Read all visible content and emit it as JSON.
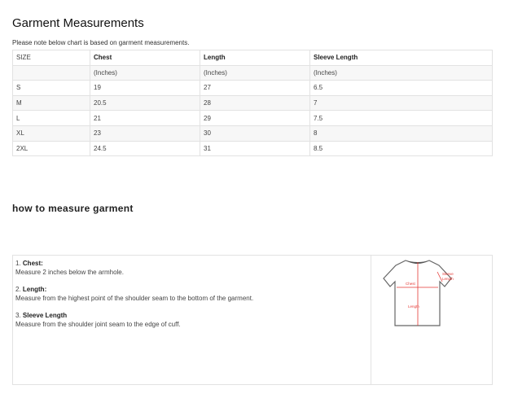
{
  "title": "Garment Measurements",
  "note": "Please note below chart is based on garment measurements.",
  "table": {
    "headers": [
      "SIZE",
      "Chest",
      "Length",
      "Sleeve Length"
    ],
    "units": [
      "",
      "(Inches)",
      "(Inches)",
      "(Inches)"
    ],
    "rows": [
      [
        "S",
        "19",
        "27",
        "6.5"
      ],
      [
        "M",
        "20.5",
        "28",
        "7"
      ],
      [
        "L",
        "21",
        "29",
        "7.5"
      ],
      [
        "XL",
        "23",
        "30",
        "8"
      ],
      [
        "2XL",
        "24.5",
        "31",
        "8.5"
      ]
    ]
  },
  "howto": {
    "title": "how to measure garment",
    "items": [
      {
        "num": "1.",
        "label": "Chest:",
        "desc": "Measure 2 inches below the armhole."
      },
      {
        "num": "2.",
        "label": "Length:",
        "desc": "Measure from the highest point of the shoulder seam to the bottom of the garment."
      },
      {
        "num": "3.",
        "label": "Sleeve Length",
        "desc": "Measure from the shoulder joint seam to the edge of cuff."
      }
    ],
    "diagram": {
      "chest": "Chest",
      "length": "Length",
      "sleeve": [
        "Sleeve",
        "Length"
      ],
      "accent": "#e53935"
    }
  }
}
